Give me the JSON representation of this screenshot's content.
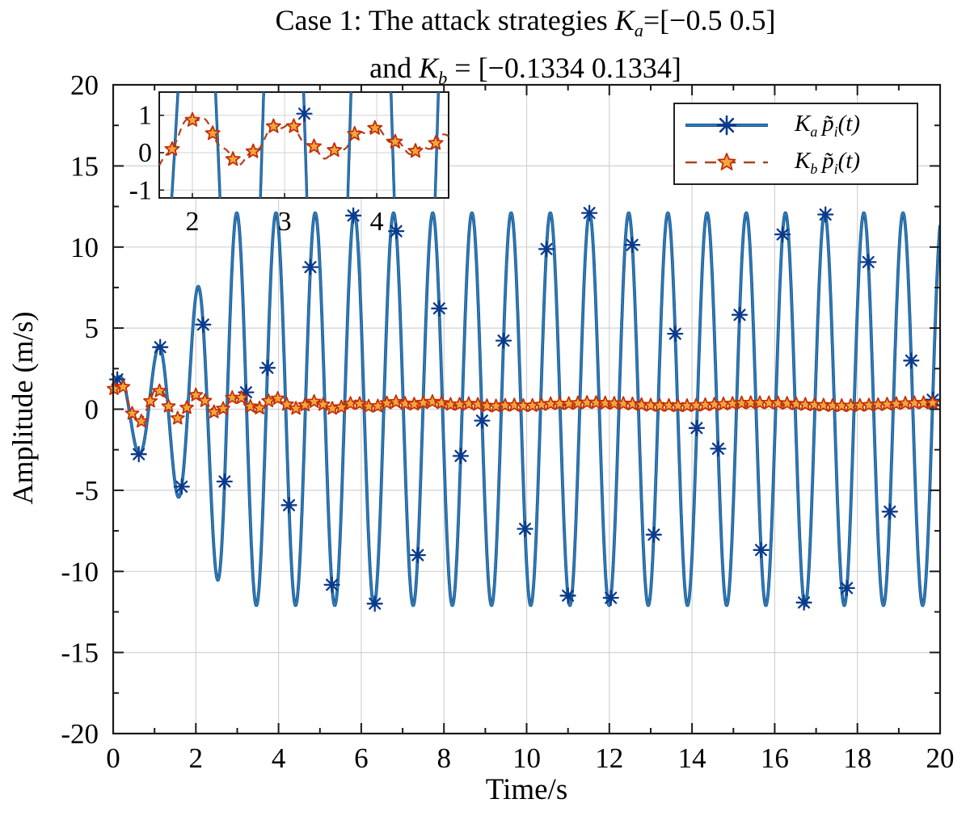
{
  "title": {
    "line1_prefix": "Case 1: The attack strategies ",
    "line1_sym": "K",
    "line1_sub": "a",
    "line1_suffix": "=[−0.5 0.5]",
    "line2_prefix": "and ",
    "line2_sym": "K",
    "line2_sub": "b",
    "line2_suffix": " = [−0.1334 0.1334]"
  },
  "axes": {
    "x_label": "Time/s",
    "y_label": "Amplitude (m/s)"
  },
  "legend": {
    "items": [
      {
        "sym": "K",
        "sub": "a",
        "func": "p̃",
        "func_sub": "i",
        "args": "(t)"
      },
      {
        "sym": "K",
        "sub": "b",
        "func": "p̃",
        "func_sub": "i",
        "args": "(t)"
      }
    ]
  },
  "colors": {
    "ka_line": "#2e7cb8",
    "ka_line_edge": "#17538f",
    "ka_marker": "#0a3a8c",
    "kb_line": "#a8431f",
    "kb_star_edge": "#c22d05",
    "kb_star_fill": "#f2a63c",
    "grid": "#d2d2d2",
    "frame": "#1a1a1a"
  },
  "chart_data": {
    "type": "line",
    "title": "Case 1: The attack strategies Ka=[−0.5 0.5] and Kb = [−0.1334 0.1334]",
    "xlabel": "Time/s",
    "ylabel": "Amplitude (m/s)",
    "xlim": [
      0,
      20
    ],
    "ylim": [
      -20,
      20
    ],
    "xticks": [
      0,
      2,
      4,
      6,
      8,
      10,
      12,
      14,
      16,
      18,
      20
    ],
    "yticks": [
      -20,
      -15,
      -10,
      -5,
      0,
      5,
      10,
      15,
      20
    ],
    "xminor_step": 1,
    "yminor_step": 2.5,
    "grid": true,
    "legend_position": "top-right",
    "series": [
      {
        "name": "Ka p̃i(t)",
        "style": "solid",
        "marker": "asterisk",
        "line_width": 2.2,
        "marker_size": 9,
        "marker_interval_s": 0.519,
        "marker_start_s": 0.1,
        "model": {
          "kind": "saturated_growing_sine",
          "amp0": 1.8,
          "growth_rate": 0.7,
          "saturation": 12.1,
          "freq_hz": 1.055,
          "phase_rad": 0.6
        },
        "description": "Attack signal growing exponentially then saturating at ±12 m/s, period ≈ 0.95 s"
      },
      {
        "name": "Kb p̃i(t)",
        "style": "dashed",
        "marker": "pentagram",
        "line_width": 2.3,
        "marker_size": 8.5,
        "marker_interval_s": 0.22,
        "marker_start_s": 0.02,
        "model": {
          "kind": "decaying_sine_offset",
          "offset": 0.3,
          "amp0": 1.4,
          "decay_rate": 0.38,
          "freq_hz": 1.055,
          "phase_rad": 0.58,
          "ripple_amp": 0.09,
          "ripple_freq_hz": 4.3
        },
        "description": "Attack signal decaying to a narrow band around +0.3 m/s"
      }
    ],
    "key_points_read_from_plot": {
      "ka_extrema": [
        [
          0.15,
          2.0
        ],
        [
          0.62,
          -2.9
        ],
        [
          1.09,
          3.9
        ],
        [
          1.57,
          -5.3
        ],
        [
          2.04,
          7.4
        ],
        [
          2.52,
          -10.4
        ],
        [
          3.0,
          12.0
        ],
        [
          3.5,
          -12.0
        ]
      ],
      "ka_steady_state": {
        "amplitude": 12.0,
        "period_s": 0.95,
        "from_t": 3.0
      },
      "kb_extrema": [
        [
          0.6,
          -1.3
        ],
        [
          1.0,
          1.5
        ],
        [
          2.1,
          1.05
        ],
        [
          2.55,
          -0.55
        ],
        [
          3.0,
          0.8
        ],
        [
          3.45,
          -0.3
        ],
        [
          3.9,
          0.6
        ],
        [
          4.35,
          -0.35
        ]
      ],
      "kb_steady_state": {
        "band_center": 0.3,
        "band_halfwidth": 0.2,
        "from_t": 5.0
      }
    },
    "inset": {
      "xlim": [
        1.64,
        4.78
      ],
      "ylim": [
        -1.21,
        1.62
      ],
      "xticks": [
        2,
        3,
        4
      ],
      "yticks": [
        -1,
        0,
        1
      ],
      "grid": true
    },
    "sample_step_s": 0.003
  }
}
